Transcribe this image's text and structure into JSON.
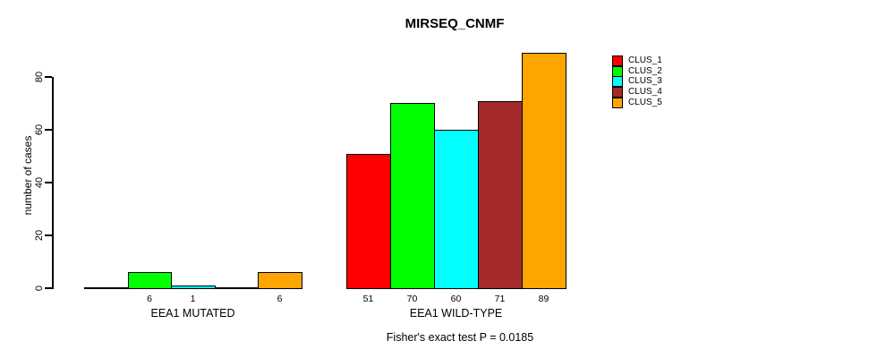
{
  "chart_data": {
    "type": "bar",
    "title": "MIRSEQ_CNMF",
    "ylabel": "number of cases",
    "xlabel": "",
    "ylim": [
      0,
      89
    ],
    "yticks": [
      0,
      20,
      40,
      60,
      80
    ],
    "grid": false,
    "categories": [
      "EEA1 MUTATED",
      "EEA1 WILD-TYPE"
    ],
    "series": [
      {
        "name": "CLUS_1",
        "color": "#ff0000",
        "values": [
          0,
          51
        ]
      },
      {
        "name": "CLUS_2",
        "color": "#00ff00",
        "values": [
          6,
          70
        ]
      },
      {
        "name": "CLUS_3",
        "color": "#00ffff",
        "values": [
          1,
          60
        ]
      },
      {
        "name": "CLUS_4",
        "color": "#a52a2a",
        "values": [
          0,
          71
        ]
      },
      {
        "name": "CLUS_5",
        "color": "#ffa500",
        "values": [
          6,
          89
        ]
      }
    ],
    "bar_value_labels": {
      "EEA1 MUTATED": [
        "",
        "6",
        "1",
        "",
        "6"
      ],
      "EEA1 WILD-TYPE": [
        "51",
        "70",
        "60",
        "71",
        "89"
      ]
    },
    "legend": {
      "position": "right",
      "entries": [
        "CLUS_1",
        "CLUS_2",
        "CLUS_3",
        "CLUS_4",
        "CLUS_5"
      ]
    },
    "annotation": "Fisher's exact test P = 0.0185"
  }
}
